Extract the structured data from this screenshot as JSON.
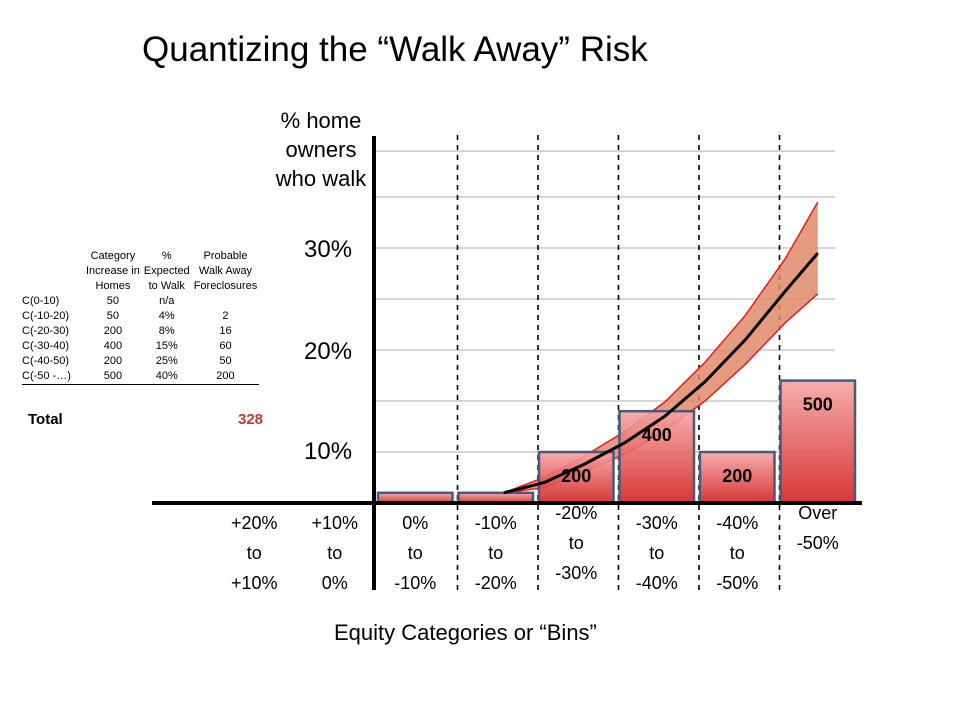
{
  "title": "Quantizing the “Walk Away” Risk",
  "chart_data": {
    "type": "bar",
    "title": "Quantizing the “Walk Away” Risk",
    "ylabel_lines": [
      "% home",
      "owners",
      "who walk"
    ],
    "xlabel": "Equity Categories or “Bins”",
    "ytick_labels": [
      "30%",
      "20%",
      "10%"
    ],
    "ytick_values": [
      30,
      20,
      10
    ],
    "ylim": [
      0,
      35
    ],
    "grid": true,
    "categories": [
      {
        "lines": [
          "+20%",
          "to",
          "+10%"
        ]
      },
      {
        "lines": [
          "+10%",
          "to",
          "0%"
        ]
      },
      {
        "lines": [
          "0%",
          "to",
          "-10%"
        ]
      },
      {
        "lines": [
          "-10%",
          "to",
          "-20%"
        ]
      },
      {
        "lines": [
          "-20%",
          "to",
          "-30%"
        ]
      },
      {
        "lines": [
          "-30%",
          "to",
          "-40%"
        ]
      },
      {
        "lines": [
          "-40%",
          "to",
          "-50%"
        ]
      },
      {
        "lines": [
          "Over",
          "-50%"
        ]
      }
    ],
    "bars": [
      {
        "category_index": 2,
        "value": 1,
        "label": ""
      },
      {
        "category_index": 3,
        "value": 1,
        "label": ""
      },
      {
        "category_index": 4,
        "value": 5,
        "label": "200"
      },
      {
        "category_index": 5,
        "value": 9,
        "label": "400"
      },
      {
        "category_index": 6,
        "value": 5,
        "label": "200"
      },
      {
        "category_index": 7,
        "value": 12,
        "label": "500"
      }
    ],
    "curve": {
      "x": [
        3.6,
        4.1,
        4.6,
        5.1,
        5.6,
        6.1,
        6.6,
        7.1,
        7.5
      ],
      "y": [
        1,
        2,
        3.8,
        5.9,
        8.5,
        11.9,
        16,
        20.8,
        24.5
      ],
      "band_lower": [
        1,
        1.5,
        3,
        4.8,
        7.1,
        10,
        13.6,
        17.7,
        20.5
      ],
      "band_upper": [
        1,
        2.5,
        4.6,
        7,
        9.9,
        13.8,
        18.4,
        24,
        29.5
      ]
    }
  },
  "table": {
    "headers": [
      [
        "",
        ""
      ],
      [
        "Category",
        "Increase in",
        "Homes"
      ],
      [
        "%",
        "Expected",
        "to Walk"
      ],
      [
        "Probable",
        "Walk Away",
        "Foreclosures"
      ]
    ],
    "rows": [
      [
        "C(0-10)",
        "50",
        "n/a",
        ""
      ],
      [
        "C(-10-20)",
        "50",
        "4%",
        "2"
      ],
      [
        "C(-20-30)",
        "200",
        "8%",
        "16"
      ],
      [
        "C(-30-40)",
        "400",
        "15%",
        "60"
      ],
      [
        "C(-40-50)",
        "200",
        "25%",
        "50"
      ],
      [
        "C(-50 -…)",
        "500",
        "40%",
        "200"
      ]
    ],
    "total_label": "Total",
    "total_value": "328"
  },
  "colors": {
    "bar_fill_top": "#f08a8a",
    "bar_fill_bottom": "#d42020",
    "bar_border": "#4a5a78",
    "band_fill": "#e08a6a",
    "band_edge": "#e02020",
    "curve": "#000000",
    "total_value": "#c0392b",
    "grid": "#bdbdbd"
  }
}
